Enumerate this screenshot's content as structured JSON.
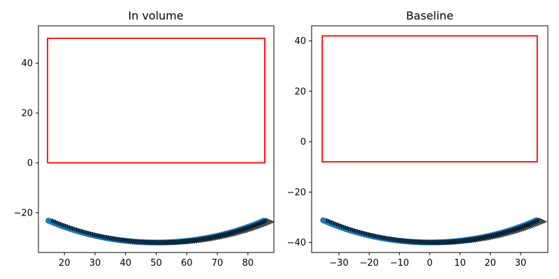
{
  "chart_data": [
    {
      "type": "scatter",
      "title": "In volume",
      "xlim": [
        11.5,
        88.5
      ],
      "ylim": [
        -36,
        55
      ],
      "xticks": [
        20,
        30,
        40,
        50,
        60,
        70,
        80
      ],
      "yticks": [
        -20,
        0,
        20,
        40
      ],
      "grid": false,
      "rectangle": {
        "x0": 14.5,
        "x1": 85.5,
        "y0": 0,
        "y1": 50,
        "color": "#ff0000"
      },
      "arc": {
        "center_x": 50,
        "center_y": 43,
        "radius": 75,
        "angle_min_deg": -118,
        "angle_max_deg": -62,
        "n_points": 120,
        "point_color": "#1f77b4"
      },
      "lines": {
        "color": "#000000",
        "description_values": "segments from each point toward the rectangle bottom edge region (shown as dense black hatching)"
      }
    },
    {
      "type": "scatter",
      "title": "Baseline",
      "xlim": [
        -39,
        39
      ],
      "ylim": [
        -44,
        46
      ],
      "xticks": [
        -30,
        -20,
        -10,
        0,
        10,
        20,
        30
      ],
      "yticks": [
        -40,
        -20,
        0,
        20,
        40
      ],
      "grid": false,
      "rectangle": {
        "x0": -35.5,
        "x1": 35.5,
        "y0": -8,
        "y1": 42,
        "color": "#ff0000"
      },
      "arc": {
        "center_x": 0,
        "center_y": 35,
        "radius": 75,
        "angle_min_deg": -118,
        "angle_max_deg": -62,
        "n_points": 120,
        "point_color": "#1f77b4"
      },
      "lines": {
        "color": "#000000",
        "description_values": "segments from each point toward the rectangle bottom edge region (shown as dense black hatching)"
      }
    }
  ]
}
